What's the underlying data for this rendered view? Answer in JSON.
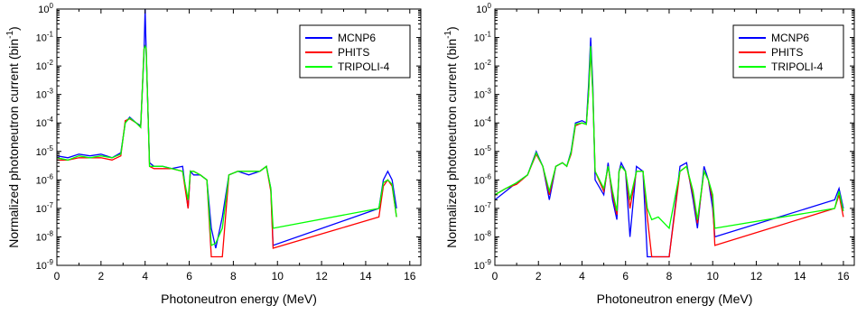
{
  "chart_data": [
    {
      "type": "line",
      "title": "",
      "xlabel": "Photoneutron energy (MeV)",
      "ylabel": "Normalized photoneutron current (bin",
      "ylabel_sup": "-1",
      "ylabel_close": ")",
      "xlim": [
        0,
        16.5
      ],
      "ylim_exp": [
        -9,
        0
      ],
      "yscale": "log",
      "xticks": [
        "0",
        "2",
        "4",
        "6",
        "8",
        "10",
        "12",
        "14",
        "16"
      ],
      "yticks": [
        {
          "base": "10",
          "exp": "0"
        },
        {
          "base": "10",
          "exp": "-1"
        },
        {
          "base": "10",
          "exp": "-2"
        },
        {
          "base": "10",
          "exp": "-3"
        },
        {
          "base": "10",
          "exp": "-4"
        },
        {
          "base": "10",
          "exp": "-5"
        },
        {
          "base": "10",
          "exp": "-6"
        },
        {
          "base": "10",
          "exp": "-7"
        },
        {
          "base": "10",
          "exp": "-8"
        },
        {
          "base": "10",
          "exp": "-9"
        }
      ],
      "legend_position": "top-right",
      "series": [
        {
          "name": "MCNP6",
          "color": "#0000ff",
          "x": [
            0,
            0.5,
            1,
            1.5,
            2,
            2.5,
            2.9,
            3.1,
            3.3,
            3.6,
            3.8,
            3.95,
            4.0,
            4.05,
            4.2,
            4.4,
            4.8,
            5.2,
            5.7,
            5.95,
            6.05,
            6.2,
            6.5,
            6.8,
            7.0,
            7.2,
            7.5,
            7.8,
            8.2,
            8.7,
            9.2,
            9.5,
            9.7,
            9.8,
            14.6,
            14.8,
            15.0,
            15.2,
            15.4
          ],
          "y": [
            7e-06,
            6e-06,
            8e-06,
            7e-06,
            8e-06,
            6e-06,
            9e-06,
            0.0001,
            0.00016,
            0.0001,
            8e-05,
            0.03,
            1.0,
            0.03,
            4e-06,
            3e-06,
            3e-06,
            2.5e-06,
            3e-06,
            1e-07,
            2e-06,
            1.5e-06,
            1.5e-06,
            1e-06,
            2e-08,
            4e-09,
            5e-08,
            1.5e-06,
            2e-06,
            1.5e-06,
            2e-06,
            3e-06,
            5e-07,
            5e-09,
            1e-07,
            1e-06,
            2e-06,
            1e-06,
            1e-07
          ]
        },
        {
          "name": "PHITS",
          "color": "#ff0000",
          "x": [
            0,
            0.5,
            1,
            1.5,
            2,
            2.5,
            2.9,
            3.1,
            3.3,
            3.6,
            3.8,
            3.95,
            4.0,
            4.05,
            4.2,
            4.4,
            4.8,
            5.2,
            5.7,
            5.95,
            6.05,
            6.2,
            6.5,
            6.8,
            7.0,
            7.2,
            7.5,
            7.8,
            8.2,
            8.7,
            9.2,
            9.5,
            9.7,
            9.8,
            14.6,
            14.8,
            15.0,
            15.2,
            15.4
          ],
          "y": [
            5e-06,
            5e-06,
            6e-06,
            6e-06,
            6e-06,
            5e-06,
            7e-06,
            0.00012,
            0.00014,
            0.0001,
            7e-05,
            0.04,
            0.05,
            0.04,
            3e-06,
            2.5e-06,
            2.5e-06,
            2.5e-06,
            2e-06,
            1e-07,
            2e-06,
            2e-06,
            1.5e-06,
            1e-06,
            2e-09,
            2e-09,
            2e-09,
            1.5e-06,
            2e-06,
            2e-06,
            2e-06,
            3e-06,
            4e-07,
            4e-09,
            5e-08,
            6e-07,
            1e-06,
            6e-07,
            5e-08
          ]
        },
        {
          "name": "TRIPOLI-4",
          "color": "#00ff00",
          "x": [
            0,
            0.5,
            1,
            1.5,
            2,
            2.5,
            2.9,
            3.1,
            3.3,
            3.6,
            3.8,
            3.95,
            4.0,
            4.05,
            4.2,
            4.4,
            4.8,
            5.2,
            5.7,
            5.95,
            6.05,
            6.2,
            6.5,
            6.8,
            7.0,
            7.2,
            7.5,
            7.8,
            8.2,
            8.7,
            9.2,
            9.5,
            9.7,
            9.8,
            14.6,
            14.8,
            15.0,
            15.2,
            15.4
          ],
          "y": [
            6e-06,
            5e-06,
            7e-06,
            6e-06,
            7e-06,
            6e-06,
            8e-06,
            0.0001,
            0.00015,
            0.0001,
            7e-05,
            0.04,
            0.05,
            0.04,
            3e-06,
            3e-06,
            3e-06,
            2.5e-06,
            2e-06,
            2e-07,
            2e-06,
            2e-06,
            1.5e-06,
            1e-06,
            5e-09,
            6e-09,
            2e-08,
            1.5e-06,
            2e-06,
            2e-06,
            2e-06,
            3e-06,
            5e-07,
            2e-08,
            1e-07,
            8e-07,
            1e-06,
            7e-07,
            5e-08
          ]
        }
      ]
    },
    {
      "type": "line",
      "title": "",
      "xlabel": "Photoneutron energy (MeV)",
      "ylabel": "Normalized photoneutron current (bin",
      "ylabel_sup": "-1",
      "ylabel_close": ")",
      "xlim": [
        0,
        16.5
      ],
      "ylim_exp": [
        -9,
        0
      ],
      "yscale": "log",
      "xticks": [
        "0",
        "2",
        "4",
        "6",
        "8",
        "10",
        "12",
        "14",
        "16"
      ],
      "yticks": [
        {
          "base": "10",
          "exp": "0"
        },
        {
          "base": "10",
          "exp": "-1"
        },
        {
          "base": "10",
          "exp": "-2"
        },
        {
          "base": "10",
          "exp": "-3"
        },
        {
          "base": "10",
          "exp": "-4"
        },
        {
          "base": "10",
          "exp": "-5"
        },
        {
          "base": "10",
          "exp": "-6"
        },
        {
          "base": "10",
          "exp": "-7"
        },
        {
          "base": "10",
          "exp": "-8"
        },
        {
          "base": "10",
          "exp": "-9"
        }
      ],
      "legend_position": "top-right",
      "series": [
        {
          "name": "MCNP6",
          "color": "#0000ff",
          "x": [
            0,
            0.5,
            1,
            1.5,
            1.9,
            2.2,
            2.5,
            2.8,
            3.1,
            3.3,
            3.5,
            3.7,
            4.0,
            4.2,
            4.3,
            4.4,
            4.5,
            4.6,
            5.0,
            5.2,
            5.4,
            5.6,
            5.7,
            5.8,
            6.0,
            6.2,
            6.5,
            6.8,
            7.0,
            7.2,
            7.5,
            8.0,
            8.5,
            8.8,
            9.1,
            9.3,
            9.6,
            9.8,
            10.0,
            10.1,
            15.6,
            15.8,
            16.0
          ],
          "y": [
            2e-07,
            4e-07,
            8e-07,
            1.5e-06,
            1e-05,
            3e-06,
            2e-07,
            3e-06,
            4e-06,
            3e-06,
            1e-05,
            0.0001,
            0.00012,
            0.0001,
            0.002,
            0.1,
            0.002,
            1e-06,
            3e-07,
            4e-06,
            2e-07,
            4e-08,
            2e-06,
            4e-06,
            2e-06,
            1e-08,
            3e-06,
            2e-06,
            2e-09,
            2e-09,
            2e-09,
            2e-09,
            3e-06,
            4e-06,
            2e-07,
            2e-08,
            3e-06,
            1e-06,
            1e-07,
            1e-08,
            2e-07,
            5e-07,
            1e-07
          ]
        },
        {
          "name": "PHITS",
          "color": "#ff0000",
          "x": [
            0,
            0.5,
            1,
            1.5,
            1.9,
            2.2,
            2.5,
            2.8,
            3.1,
            3.3,
            3.5,
            3.7,
            4.0,
            4.2,
            4.3,
            4.4,
            4.5,
            4.6,
            5.0,
            5.2,
            5.4,
            5.6,
            5.7,
            5.8,
            6.0,
            6.2,
            6.5,
            6.8,
            7.0,
            7.2,
            7.5,
            8.0,
            8.5,
            8.8,
            9.1,
            9.3,
            9.6,
            9.8,
            10.0,
            10.1,
            15.6,
            15.8,
            16.0
          ],
          "y": [
            3e-07,
            5e-07,
            7e-07,
            1.5e-06,
            8e-06,
            3e-06,
            3e-07,
            3e-06,
            4e-06,
            3e-06,
            8e-06,
            8e-05,
            0.0001,
            9e-05,
            0.001,
            0.04,
            0.001,
            2e-06,
            4e-07,
            3e-06,
            3e-07,
            6e-08,
            2e-06,
            3e-06,
            2e-06,
            1e-07,
            2e-06,
            2e-06,
            5e-08,
            2e-09,
            2e-09,
            2e-09,
            2e-06,
            3e-06,
            3e-07,
            3e-08,
            2e-06,
            1e-06,
            2e-07,
            5e-09,
            1e-07,
            3e-07,
            5e-08
          ]
        },
        {
          "name": "TRIPOLI-4",
          "color": "#00ff00",
          "x": [
            0,
            0.5,
            1,
            1.5,
            1.9,
            2.2,
            2.5,
            2.8,
            3.1,
            3.3,
            3.5,
            3.7,
            4.0,
            4.2,
            4.3,
            4.4,
            4.5,
            4.6,
            5.0,
            5.2,
            5.4,
            5.6,
            5.7,
            5.8,
            6.0,
            6.2,
            6.5,
            6.8,
            7.0,
            7.2,
            7.5,
            8.0,
            8.5,
            8.8,
            9.1,
            9.3,
            9.6,
            9.8,
            10.0,
            10.1,
            15.6,
            15.8,
            16.0
          ],
          "y": [
            3e-07,
            5e-07,
            8e-07,
            1.5e-06,
            9e-06,
            3e-06,
            4e-07,
            3e-06,
            4e-06,
            3e-06,
            9e-06,
            9e-05,
            0.0001,
            9e-05,
            0.001,
            0.05,
            0.001,
            2e-06,
            5e-07,
            3e-06,
            4e-07,
            8e-08,
            2e-06,
            3e-06,
            2e-06,
            2e-07,
            2e-06,
            2e-06,
            1e-07,
            4e-08,
            5e-08,
            2e-08,
            2e-06,
            3e-06,
            4e-07,
            4e-08,
            2e-06,
            1e-06,
            3e-07,
            2e-08,
            1e-07,
            4e-07,
            8e-08
          ]
        }
      ]
    }
  ]
}
